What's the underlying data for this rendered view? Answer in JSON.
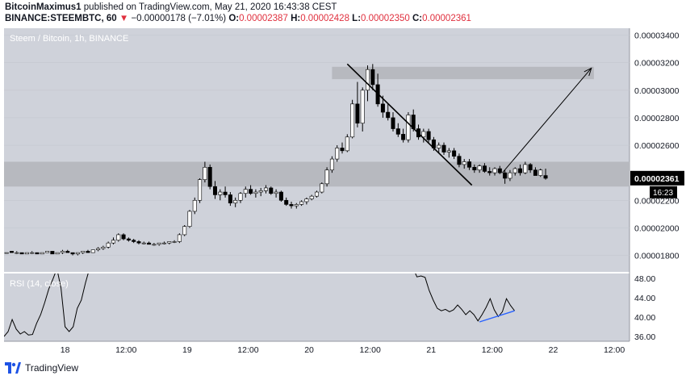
{
  "header": {
    "author": "BitcoinMaximus1",
    "published_text": "published on TradingView.com, May 21, 2020 16:43:38 CEST",
    "symbol_line": "BINANCE:STEEMBTC, 60",
    "change": "−0.00000178 (−7.01%)",
    "o_label": "O:",
    "o_value": "0.00002387",
    "h_label": "H:",
    "h_value": "0.00002428",
    "l_label": "L:",
    "l_value": "0.00002350",
    "c_label": "C:",
    "c_value": "0.00002361"
  },
  "footer": {
    "brand": "TradingView"
  },
  "colors": {
    "pane_bg": "#cfd2da",
    "zone": "#b7b9bf",
    "candle_up": "#ffffff",
    "candle_down": "#000000",
    "rsi_line": "#000000",
    "rsi_trend": "#2962ff",
    "price_badge": "#000000"
  },
  "chart_data": {
    "type": "candlestick",
    "title": "Steem / Bitcoin, 1h, BINANCE",
    "price_axis": {
      "min": 1.68e-05,
      "max": 3.45e-05,
      "ticks": [
        {
          "v": 1.8e-05,
          "label": "0.00001800"
        },
        {
          "v": 2e-05,
          "label": "0.00002000"
        },
        {
          "v": 2.2e-05,
          "label": "0.00002200"
        },
        {
          "v": 2.6e-05,
          "label": "0.00002600"
        },
        {
          "v": 2.8e-05,
          "label": "0.00002800"
        },
        {
          "v": 3e-05,
          "label": "0.00003000"
        },
        {
          "v": 3.2e-05,
          "label": "0.00003200"
        },
        {
          "v": 3.4e-05,
          "label": "0.00003400"
        }
      ],
      "last_price": {
        "v": 2.361e-05,
        "label": "0.00002361"
      },
      "countdown": "16:23"
    },
    "time_axis": {
      "start_hour": 0,
      "end_hour": 123,
      "ticks": [
        {
          "h": 12,
          "label": "18"
        },
        {
          "h": 24,
          "label": "12:00"
        },
        {
          "h": 36,
          "label": "19"
        },
        {
          "h": 48,
          "label": "12:00"
        },
        {
          "h": 60,
          "label": "20"
        },
        {
          "h": 72,
          "label": "12:00"
        },
        {
          "h": 84,
          "label": "21"
        },
        {
          "h": 96,
          "label": "12:00"
        },
        {
          "h": 108,
          "label": "22"
        },
        {
          "h": 120,
          "label": "12:00"
        }
      ]
    },
    "zones": [
      {
        "from": 2.3e-05,
        "to": 2.48e-05,
        "h_start": 0,
        "h_end": 123
      },
      {
        "from": 3.08e-05,
        "to": 3.17e-05,
        "h_start": 64.5,
        "h_end": 116
      }
    ],
    "trendline": {
      "p1": {
        "h": 67.5,
        "v": 3.19e-05
      },
      "p2": {
        "h": 92,
        "v": 2.31e-05
      }
    },
    "projection": {
      "from": {
        "h": 98,
        "v": 2.4e-05
      },
      "to": {
        "h": 115.5,
        "v": 3.16e-05
      }
    },
    "candles": [
      [
        1.82e-05,
        1.83e-05,
        1.83e-05,
        1.82e-05
      ],
      [
        1.83e-05,
        1.83e-05,
        1.82e-05,
        1.82e-05
      ],
      [
        1.82e-05,
        1.83e-05,
        1.81e-05,
        1.82e-05
      ],
      [
        1.82e-05,
        1.82e-05,
        1.81e-05,
        1.81e-05
      ],
      [
        1.81e-05,
        1.82e-05,
        1.81e-05,
        1.82e-05
      ],
      [
        1.82e-05,
        1.83e-05,
        1.81e-05,
        1.82e-05
      ],
      [
        1.82e-05,
        1.82e-05,
        1.81e-05,
        1.81e-05
      ],
      [
        1.81e-05,
        1.82e-05,
        1.81e-05,
        1.82e-05
      ],
      [
        1.82e-05,
        1.83e-05,
        1.82e-05,
        1.83e-05
      ],
      [
        1.83e-05,
        1.83e-05,
        1.81e-05,
        1.81e-05
      ],
      [
        1.81e-05,
        1.82e-05,
        1.81e-05,
        1.82e-05
      ],
      [
        1.82e-05,
        1.84e-05,
        1.81e-05,
        1.83e-05
      ],
      [
        1.83e-05,
        1.84e-05,
        1.82e-05,
        1.82e-05
      ],
      [
        1.82e-05,
        1.82e-05,
        1.8e-05,
        1.81e-05
      ],
      [
        1.81e-05,
        1.82e-05,
        1.8e-05,
        1.82e-05
      ],
      [
        1.82e-05,
        1.83e-05,
        1.81e-05,
        1.83e-05
      ],
      [
        1.83e-05,
        1.84e-05,
        1.82e-05,
        1.82e-05
      ],
      [
        1.82e-05,
        1.84e-05,
        1.82e-05,
        1.84e-05
      ],
      [
        1.84e-05,
        1.86e-05,
        1.83e-05,
        1.85e-05
      ],
      [
        1.85e-05,
        1.87e-05,
        1.84e-05,
        1.86e-05
      ],
      [
        1.86e-05,
        1.9e-05,
        1.85e-05,
        1.89e-05
      ],
      [
        1.89e-05,
        1.93e-05,
        1.88e-05,
        1.91e-05
      ],
      [
        1.91e-05,
        1.96e-05,
        1.9e-05,
        1.95e-05
      ],
      [
        1.95e-05,
        1.96e-05,
        1.91e-05,
        1.92e-05
      ],
      [
        1.92e-05,
        1.93e-05,
        1.9e-05,
        1.91e-05
      ],
      [
        1.91e-05,
        1.92e-05,
        1.89e-05,
        1.9e-05
      ],
      [
        1.9e-05,
        1.91e-05,
        1.88e-05,
        1.89e-05
      ],
      [
        1.89e-05,
        1.9e-05,
        1.88e-05,
        1.89e-05
      ],
      [
        1.89e-05,
        1.9e-05,
        1.88e-05,
        1.88e-05
      ],
      [
        1.88e-05,
        1.89e-05,
        1.87e-05,
        1.88e-05
      ],
      [
        1.88e-05,
        1.89e-05,
        1.87e-05,
        1.89e-05
      ],
      [
        1.89e-05,
        1.9e-05,
        1.88e-05,
        1.89e-05
      ],
      [
        1.89e-05,
        1.9e-05,
        1.88e-05,
        1.9e-05
      ],
      [
        1.9e-05,
        1.91e-05,
        1.89e-05,
        1.9e-05
      ],
      [
        1.9e-05,
        1.96e-05,
        1.89e-05,
        1.95e-05
      ],
      [
        1.95e-05,
        2.02e-05,
        1.94e-05,
        2.01e-05
      ],
      [
        2.01e-05,
        2.13e-05,
        2e-05,
        2.12e-05
      ],
      [
        2.12e-05,
        2.22e-05,
        2.1e-05,
        2.2e-05
      ],
      [
        2.2e-05,
        2.36e-05,
        2.18e-05,
        2.35e-05
      ],
      [
        2.35e-05,
        2.48e-05,
        2.33e-05,
        2.44e-05
      ],
      [
        2.44e-05,
        2.46e-05,
        2.28e-05,
        2.3e-05
      ],
      [
        2.3e-05,
        2.34e-05,
        2.21e-05,
        2.24e-05
      ],
      [
        2.24e-05,
        2.28e-05,
        2.2e-05,
        2.26e-05
      ],
      [
        2.26e-05,
        2.3e-05,
        2.22e-05,
        2.24e-05
      ],
      [
        2.24e-05,
        2.26e-05,
        2.16e-05,
        2.18e-05
      ],
      [
        2.18e-05,
        2.22e-05,
        2.15e-05,
        2.2e-05
      ],
      [
        2.2e-05,
        2.26e-05,
        2.18e-05,
        2.25e-05
      ],
      [
        2.25e-05,
        2.3e-05,
        2.22e-05,
        2.28e-05
      ],
      [
        2.28e-05,
        2.31e-05,
        2.24e-05,
        2.25e-05
      ],
      [
        2.25e-05,
        2.28e-05,
        2.22e-05,
        2.26e-05
      ],
      [
        2.26e-05,
        2.29e-05,
        2.23e-05,
        2.27e-05
      ],
      [
        2.27e-05,
        2.31e-05,
        2.25e-05,
        2.29e-05
      ],
      [
        2.29e-05,
        2.3e-05,
        2.24e-05,
        2.25e-05
      ],
      [
        2.25e-05,
        2.28e-05,
        2.22e-05,
        2.26e-05
      ],
      [
        2.26e-05,
        2.27e-05,
        2.19e-05,
        2.2e-05
      ],
      [
        2.2e-05,
        2.22e-05,
        2.16e-05,
        2.17e-05
      ],
      [
        2.17e-05,
        2.19e-05,
        2.14e-05,
        2.16e-05
      ],
      [
        2.16e-05,
        2.18e-05,
        2.14e-05,
        2.17e-05
      ],
      [
        2.17e-05,
        2.2e-05,
        2.16e-05,
        2.19e-05
      ],
      [
        2.19e-05,
        2.22e-05,
        2.17e-05,
        2.21e-05
      ],
      [
        2.21e-05,
        2.24e-05,
        2.2e-05,
        2.23e-05
      ],
      [
        2.23e-05,
        2.27e-05,
        2.22e-05,
        2.26e-05
      ],
      [
        2.26e-05,
        2.33e-05,
        2.25e-05,
        2.32e-05
      ],
      [
        2.32e-05,
        2.44e-05,
        2.3e-05,
        2.42e-05
      ],
      [
        2.42e-05,
        2.52e-05,
        2.4e-05,
        2.5e-05
      ],
      [
        2.5e-05,
        2.6e-05,
        2.48e-05,
        2.58e-05
      ],
      [
        2.58e-05,
        2.62e-05,
        2.54e-05,
        2.56e-05
      ],
      [
        2.56e-05,
        2.68e-05,
        2.55e-05,
        2.66e-05
      ],
      [
        2.66e-05,
        2.93e-05,
        2.65e-05,
        2.9e-05
      ],
      [
        2.9e-05,
        3.06e-05,
        2.73e-05,
        2.76e-05
      ],
      [
        2.76e-05,
        3.02e-05,
        2.7e-05,
        3e-05
      ],
      [
        3e-05,
        3.18e-05,
        2.92e-05,
        3.15e-05
      ],
      [
        3.15e-05,
        3.19e-05,
        3e-05,
        3.04e-05
      ],
      [
        3.04e-05,
        3.12e-05,
        2.88e-05,
        2.9e-05
      ],
      [
        2.9e-05,
        2.96e-05,
        2.8e-05,
        2.84e-05
      ],
      [
        2.84e-05,
        2.9e-05,
        2.78e-05,
        2.8e-05
      ],
      [
        2.8e-05,
        2.84e-05,
        2.7e-05,
        2.72e-05
      ],
      [
        2.72e-05,
        2.76e-05,
        2.66e-05,
        2.68e-05
      ],
      [
        2.68e-05,
        2.72e-05,
        2.62e-05,
        2.64e-05
      ],
      [
        2.64e-05,
        2.84e-05,
        2.62e-05,
        2.82e-05
      ],
      [
        2.82e-05,
        2.86e-05,
        2.7e-05,
        2.72e-05
      ],
      [
        2.72e-05,
        2.75e-05,
        2.64e-05,
        2.66e-05
      ],
      [
        2.66e-05,
        2.72e-05,
        2.62e-05,
        2.7e-05
      ],
      [
        2.7e-05,
        2.72e-05,
        2.62e-05,
        2.64e-05
      ],
      [
        2.64e-05,
        2.66e-05,
        2.56e-05,
        2.58e-05
      ],
      [
        2.58e-05,
        2.62e-05,
        2.54e-05,
        2.6e-05
      ],
      [
        2.6e-05,
        2.62e-05,
        2.53e-05,
        2.55e-05
      ],
      [
        2.55e-05,
        2.58e-05,
        2.51e-05,
        2.56e-05
      ],
      [
        2.56e-05,
        2.58e-05,
        2.5e-05,
        2.52e-05
      ],
      [
        2.52e-05,
        2.54e-05,
        2.44e-05,
        2.46e-05
      ],
      [
        2.46e-05,
        2.5e-05,
        2.43e-05,
        2.48e-05
      ],
      [
        2.48e-05,
        2.5e-05,
        2.42e-05,
        2.44e-05
      ],
      [
        2.44e-05,
        2.46e-05,
        2.4e-05,
        2.42e-05
      ],
      [
        2.42e-05,
        2.46e-05,
        2.4e-05,
        2.45e-05
      ],
      [
        2.45e-05,
        2.47e-05,
        2.4e-05,
        2.41e-05
      ],
      [
        2.41e-05,
        2.44e-05,
        2.38e-05,
        2.4e-05
      ],
      [
        2.4e-05,
        2.44e-05,
        2.38e-05,
        2.43e-05
      ],
      [
        2.43e-05,
        2.45e-05,
        2.39e-05,
        2.4e-05
      ],
      [
        2.4e-05,
        2.42e-05,
        2.32e-05,
        2.36e-05
      ],
      [
        2.36e-05,
        2.42e-05,
        2.34e-05,
        2.4e-05
      ],
      [
        2.4e-05,
        2.44e-05,
        2.38e-05,
        2.43e-05
      ],
      [
        2.43e-05,
        2.46e-05,
        2.38e-05,
        2.4e-05
      ],
      [
        2.4e-05,
        2.48e-05,
        2.39e-05,
        2.46e-05
      ],
      [
        2.46e-05,
        2.47e-05,
        2.4e-05,
        2.42e-05
      ],
      [
        2.42e-05,
        2.44e-05,
        2.38e-05,
        2.38e-05
      ],
      [
        2.38e-05,
        2.43e-05,
        2.37e-05,
        2.42e-05
      ],
      [
        2.38e-05,
        2.43e-05,
        2.35e-05,
        2.36e-05
      ]
    ],
    "rsi": {
      "label": "RSI (14, close)",
      "min": 35,
      "max": 49,
      "ticks": [
        {
          "v": 36,
          "label": "36.00"
        },
        {
          "v": 40,
          "label": "40.00"
        },
        {
          "v": 44,
          "label": "44.00"
        },
        {
          "v": 48,
          "label": "48.00"
        }
      ],
      "segments": [
        [
          [
            0,
            36
          ],
          [
            0.8,
            37
          ],
          [
            1.6,
            39.5
          ],
          [
            2.4,
            37.5
          ],
          [
            3.2,
            36.5
          ],
          [
            4,
            37
          ],
          [
            4.8,
            36.3
          ],
          [
            5.6,
            36.4
          ],
          [
            6.4,
            38.7
          ],
          [
            7.2,
            40.5
          ],
          [
            8,
            43
          ],
          [
            8.8,
            45.8
          ],
          [
            9.6,
            47.8
          ],
          [
            10.4,
            50
          ],
          [
            11.2,
            46
          ],
          [
            12,
            38
          ],
          [
            12.8,
            37
          ],
          [
            13.6,
            38
          ],
          [
            14.4,
            41.8
          ],
          [
            15.2,
            43.5
          ],
          [
            16,
            47
          ],
          [
            16.8,
            50
          ]
        ],
        [
          [
            80.5,
            50
          ],
          [
            81.2,
            48.3
          ],
          [
            82,
            48.5
          ],
          [
            82.8,
            48.2
          ],
          [
            83.6,
            45.5
          ],
          [
            84.4,
            43.5
          ],
          [
            85.2,
            41.8
          ],
          [
            86,
            41.3
          ],
          [
            86.8,
            41.6
          ],
          [
            87.6,
            41.1
          ],
          [
            88.4,
            41.5
          ],
          [
            89.2,
            42.5
          ],
          [
            90,
            41.6
          ],
          [
            90.8,
            40.5
          ],
          [
            91.6,
            41.3
          ],
          [
            92.4,
            40.5
          ],
          [
            93.2,
            39.2
          ],
          [
            94,
            40.5
          ],
          [
            94.8,
            42
          ],
          [
            95.6,
            43.8
          ],
          [
            96.4,
            41.5
          ],
          [
            97.2,
            40.1
          ],
          [
            98,
            41.1
          ],
          [
            98.8,
            43.8
          ],
          [
            99.6,
            42.4
          ],
          [
            100.4,
            41.3
          ]
        ]
      ],
      "trend": {
        "p1": {
          "h": 93.5,
          "v": 39.0
        },
        "p2": {
          "h": 100.4,
          "v": 41.3
        }
      }
    }
  }
}
